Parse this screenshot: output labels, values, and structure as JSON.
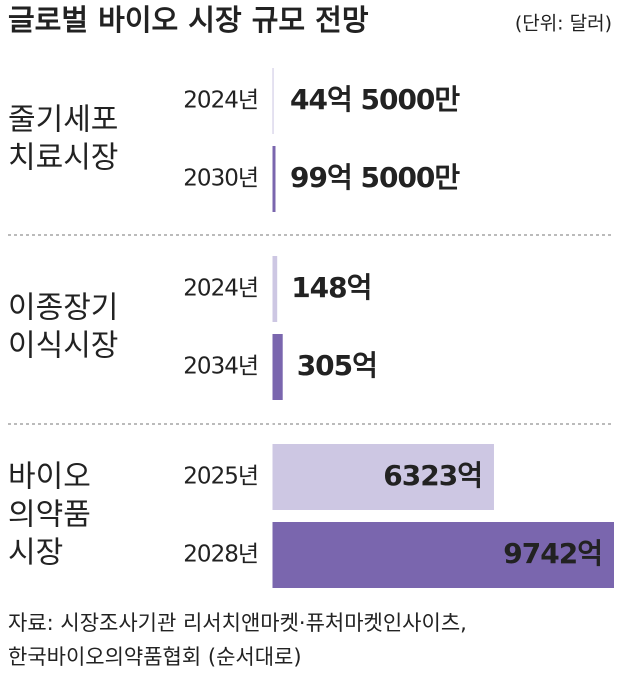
{
  "chart_data": {
    "type": "bar",
    "title": "글로벌 바이오 시장 규모 전망",
    "subtitle": "(단위: 달러)",
    "colors": [
      "#cdc7e3",
      "#7a66ae"
    ],
    "groups": [
      {
        "name_lines": [
          "줄기세포",
          "치료시장"
        ],
        "categories": [
          "2024년",
          "2030년"
        ],
        "values": [
          44.5,
          99.5
        ],
        "value_labels": [
          "44억 5000만",
          "99억 5000만"
        ]
      },
      {
        "name_lines": [
          "이종장기",
          "이식시장"
        ],
        "categories": [
          "2024년",
          "2034년"
        ],
        "values": [
          148,
          305
        ],
        "value_labels": [
          "148억",
          "305억"
        ]
      },
      {
        "name_lines": [
          "바이오",
          "의약품",
          "시장"
        ],
        "categories": [
          "2025년",
          "2028년"
        ],
        "values": [
          6323,
          9742
        ],
        "value_labels": [
          "6323억",
          "9742억"
        ]
      }
    ],
    "source": [
      "자료: 시장조사기관 리서치앤마켓·퓨처마켓인사이츠,",
      "한국바이오의약품협회 (순서대로)"
    ]
  }
}
